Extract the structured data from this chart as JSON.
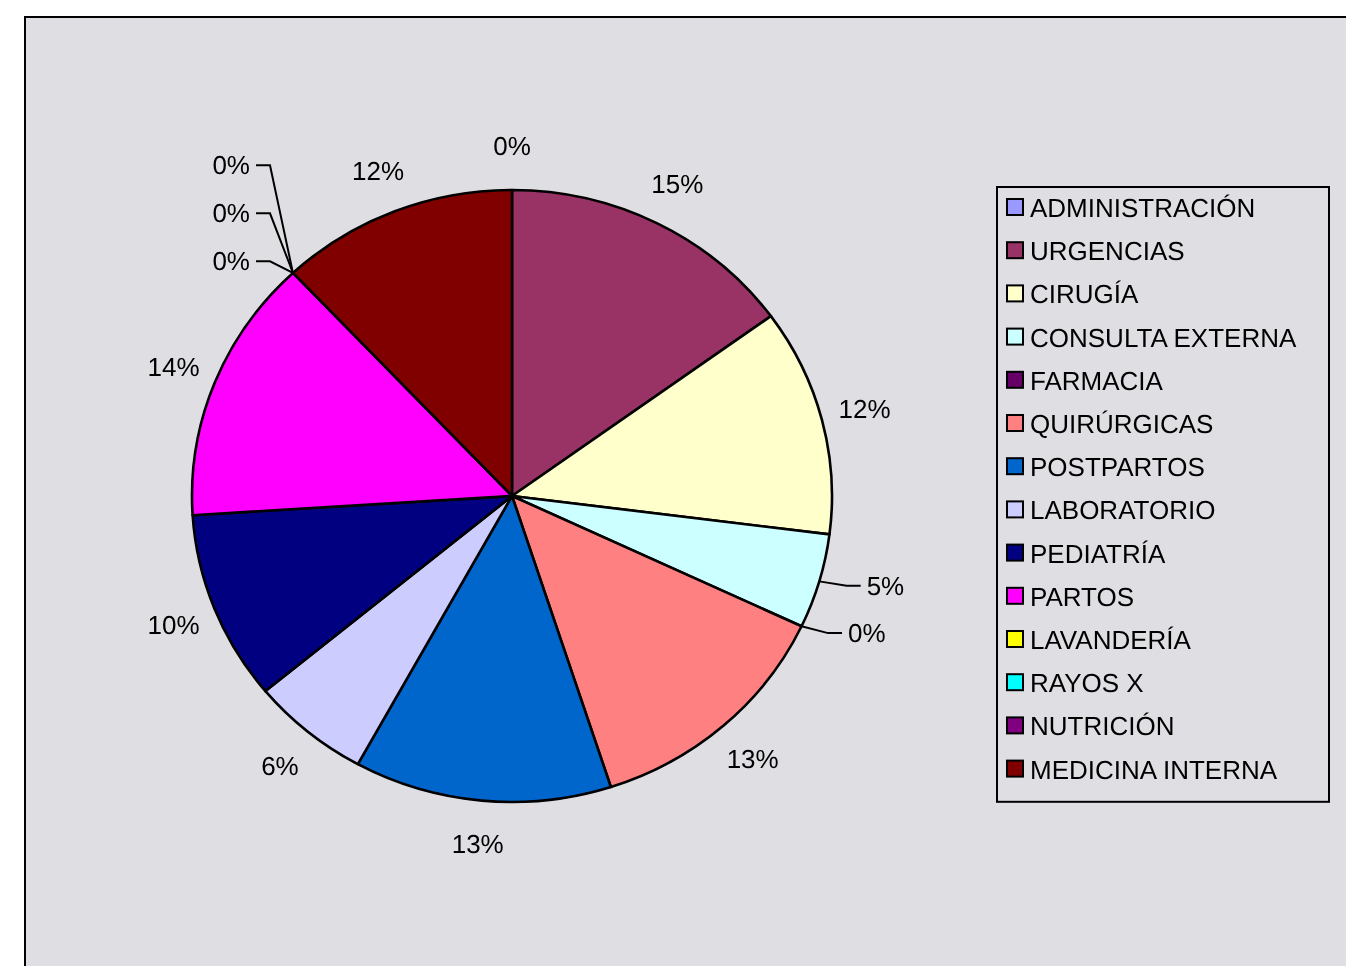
{
  "chart_data": {
    "type": "pie",
    "categories": [
      "ADMINISTRACIÓN",
      "URGENCIAS",
      "CIRUGÍA",
      "CONSULTA EXTERNA",
      "FARMACIA",
      "QUIRÚRGICAS",
      "POSTPARTOS",
      "LABORATORIO",
      "PEDIATRÍA",
      "PARTOS",
      "LAVANDERÍA",
      "RAYOS X",
      "NUTRICIÓN",
      "MEDICINA INTERNA"
    ],
    "values": [
      0,
      15,
      12,
      5,
      0,
      13,
      13,
      6,
      10,
      14,
      0,
      0,
      0,
      12
    ],
    "colors": [
      "#9999ff",
      "#993366",
      "#ffffcc",
      "#ccffff",
      "#660066",
      "#ff8080",
      "#0066cc",
      "#ccccff",
      "#000080",
      "#ff00ff",
      "#ffff00",
      "#00ffff",
      "#800080",
      "#800000"
    ],
    "value_labels": [
      "0%",
      "15%",
      "12%",
      "5%",
      "0%",
      "13%",
      "13%",
      "6%",
      "10%",
      "14%",
      "0%",
      "0%",
      "0%",
      "12%"
    ],
    "legend": "right"
  }
}
